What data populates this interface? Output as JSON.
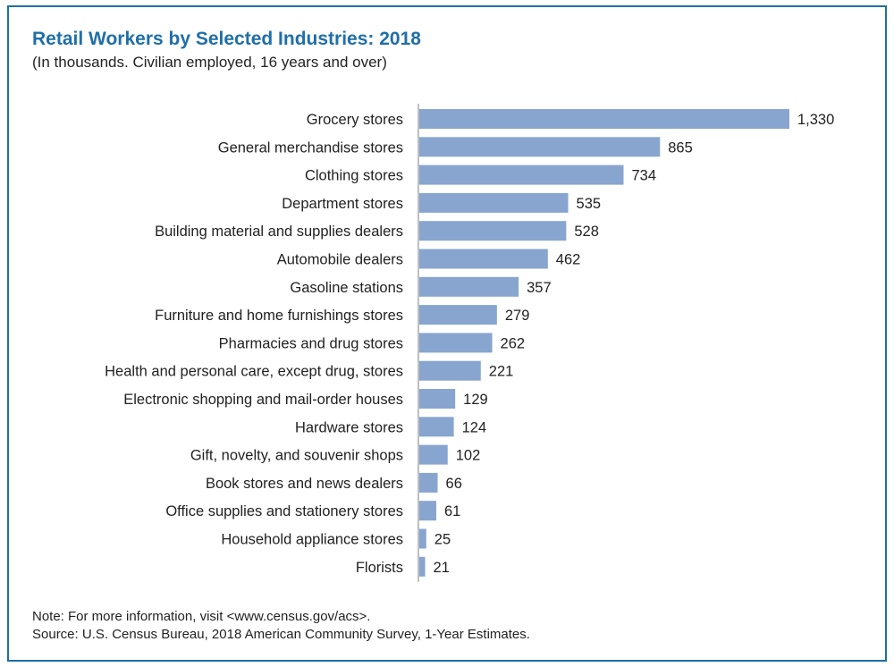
{
  "chart_data": {
    "type": "bar",
    "orientation": "horizontal",
    "title": "Retail Workers by Selected Industries: 2018",
    "subtitle": "(In thousands. Civilian employed, 16 years and over)",
    "categories": [
      "Grocery stores",
      "General merchandise stores",
      "Clothing stores",
      "Department stores",
      "Building material and supplies dealers",
      "Automobile dealers",
      "Gasoline stations",
      "Furniture and home furnishings stores",
      "Pharmacies and drug stores",
      "Health and personal care, except drug, stores",
      "Electronic shopping and mail-order houses",
      "Hardware stores",
      "Gift, novelty, and souvenir shops",
      "Book stores and news dealers",
      "Office supplies and stationery stores",
      "Household appliance stores",
      "Florists"
    ],
    "values": [
      1330,
      865,
      734,
      535,
      528,
      462,
      357,
      279,
      262,
      221,
      129,
      124,
      102,
      66,
      61,
      25,
      21
    ],
    "value_labels": [
      "1,330",
      "865",
      "734",
      "535",
      "528",
      "462",
      "357",
      "279",
      "262",
      "221",
      "129",
      "124",
      "102",
      "66",
      "61",
      "25",
      "21"
    ],
    "xlim": [
      0,
      1330
    ],
    "xlabel": "",
    "ylabel": "",
    "grid": false,
    "bar_color": "#87a5cf",
    "axis_color": "#aaaaaa"
  },
  "footer": {
    "note": "Note: For more information, visit <www.census.gov/acs>.",
    "source": "Source: U.S. Census Bureau, 2018 American Community Survey, 1-Year Estimates."
  },
  "colors": {
    "title": "#1f6fa8",
    "border": "#1f6fa8",
    "text": "#222222"
  }
}
